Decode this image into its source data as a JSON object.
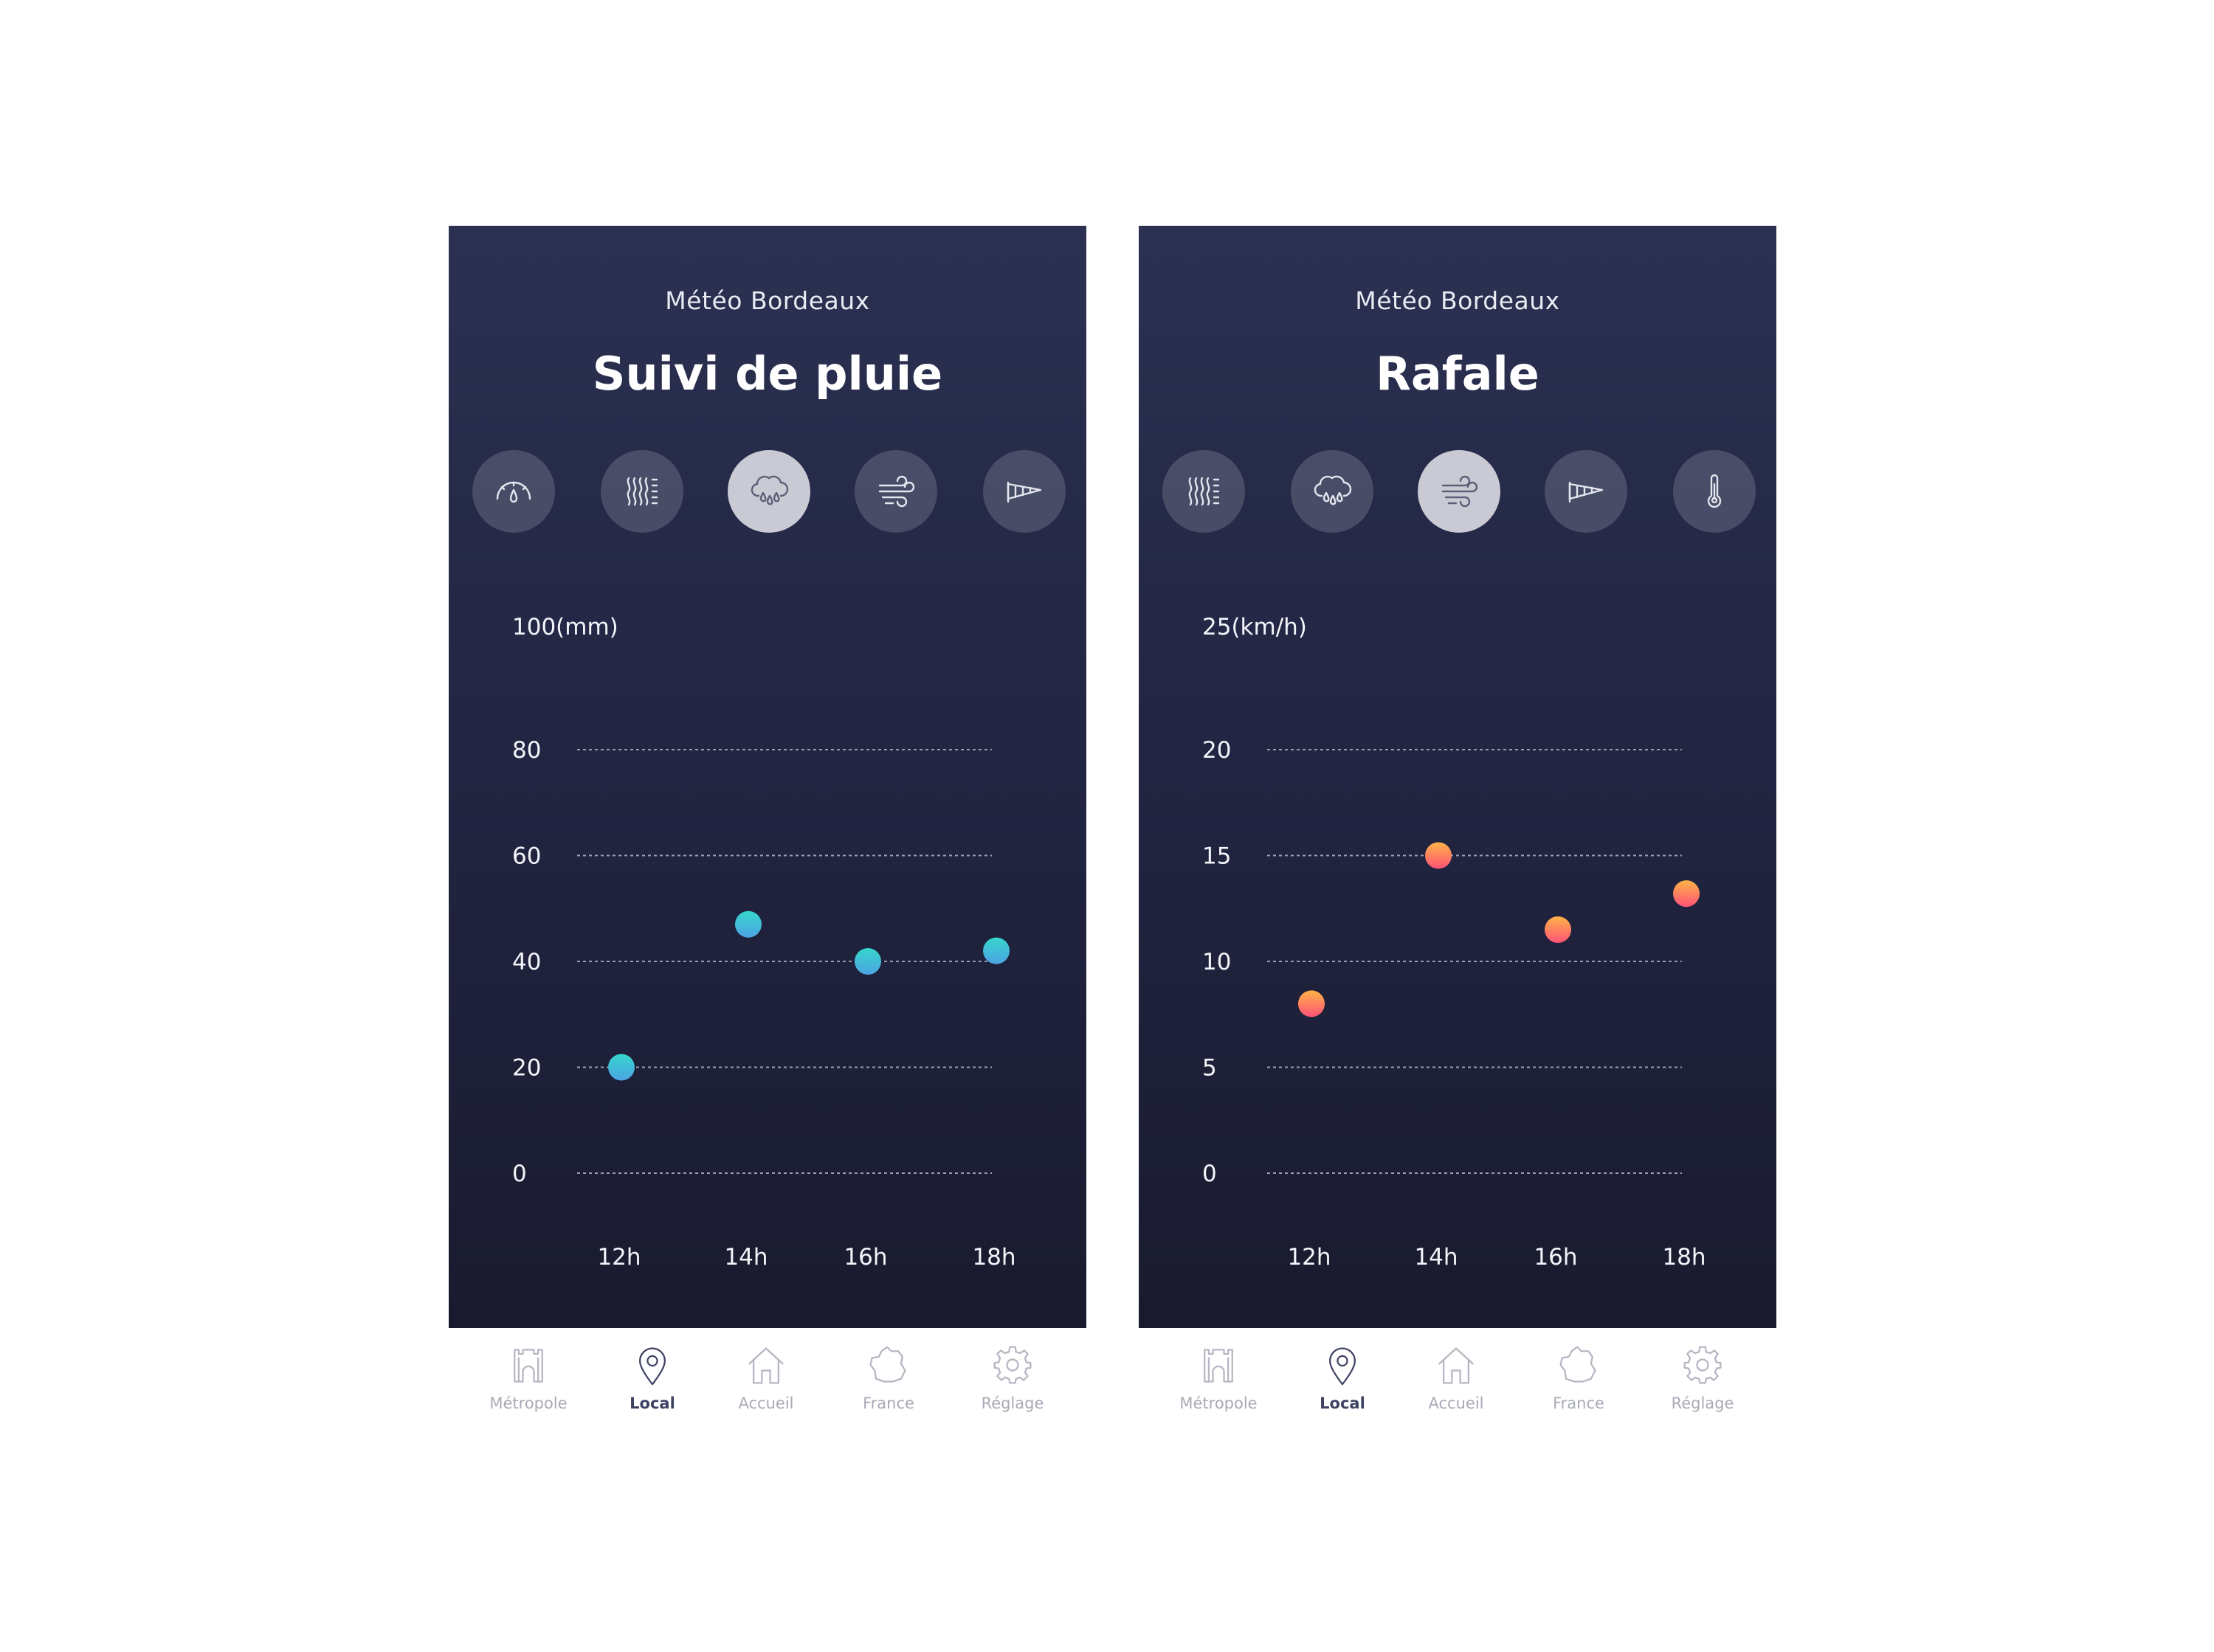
{
  "phones": [
    {
      "subtitle": "Météo Bordeaux",
      "title": "Suivi de pluie",
      "metrics": [
        {
          "icon": "pressure-gauge-icon",
          "active": false
        },
        {
          "icon": "humidity-icon",
          "active": false
        },
        {
          "icon": "rain-cloud-icon",
          "active": true
        },
        {
          "icon": "wind-icon",
          "active": false
        },
        {
          "icon": "windsock-icon",
          "active": false
        }
      ],
      "tabs": [
        {
          "label": "Métropole",
          "icon": "castle-icon",
          "active": false
        },
        {
          "label": "Local",
          "icon": "location-pin-icon",
          "active": true
        },
        {
          "label": "Accueil",
          "icon": "home-icon",
          "active": false
        },
        {
          "label": "France",
          "icon": "france-map-icon",
          "active": false
        },
        {
          "label": "Réglage",
          "icon": "gear-icon",
          "active": false
        }
      ]
    },
    {
      "subtitle": "Météo Bordeaux",
      "title": "Rafale",
      "metrics": [
        {
          "icon": "humidity-icon",
          "active": false
        },
        {
          "icon": "rain-cloud-icon",
          "active": false
        },
        {
          "icon": "wind-icon",
          "active": true
        },
        {
          "icon": "windsock-icon",
          "active": false
        },
        {
          "icon": "thermometer-icon",
          "active": false
        }
      ],
      "tabs": [
        {
          "label": "Métropole",
          "icon": "castle-icon",
          "active": false
        },
        {
          "label": "Local",
          "icon": "location-pin-icon",
          "active": true
        },
        {
          "label": "Accueil",
          "icon": "home-icon",
          "active": false
        },
        {
          "label": "France",
          "icon": "france-map-icon",
          "active": false
        },
        {
          "label": "Réglage",
          "icon": "gear-icon",
          "active": false
        }
      ]
    }
  ],
  "chart_data": [
    {
      "type": "scatter",
      "title": "Suivi de pluie",
      "unit_label": "100(mm)",
      "x": [
        "12h",
        "14h",
        "16h",
        "18h"
      ],
      "y": [
        20,
        47,
        40,
        42
      ],
      "yticks": [
        "80",
        "60",
        "40",
        "20",
        "0"
      ],
      "ylim": [
        0,
        100
      ],
      "grid": true,
      "colors": [
        "#35d6cc",
        "#4da4e4"
      ]
    },
    {
      "type": "scatter",
      "title": "Rafale",
      "unit_label": "25(km/h)",
      "x": [
        "12h",
        "14h",
        "16h",
        "18h"
      ],
      "y": [
        8,
        15,
        11.5,
        13.2
      ],
      "yticks": [
        "20",
        "15",
        "10",
        "5",
        "0"
      ],
      "ylim": [
        0,
        25
      ],
      "grid": true,
      "colors": [
        "#ffb347",
        "#ff5277"
      ]
    }
  ]
}
